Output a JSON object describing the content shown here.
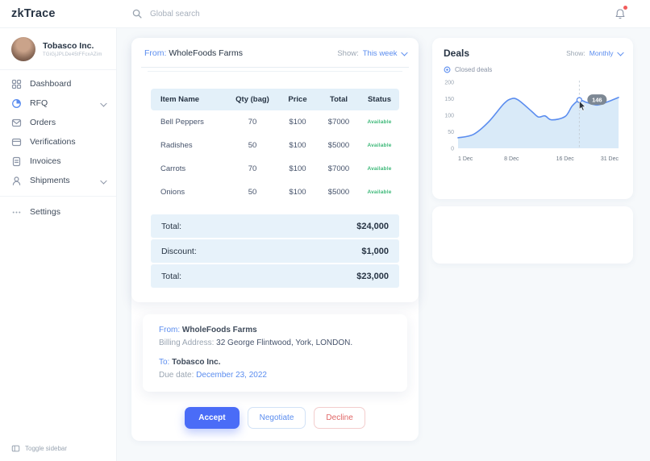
{
  "app": {
    "logo": "zkTrace"
  },
  "topbar": {
    "search_placeholder": "Global search"
  },
  "sidebar": {
    "user": {
      "name": "Tobasco Inc.",
      "id": "TGiGjJPLDe45tFFcxAZim"
    },
    "items": [
      {
        "label": "Dashboard"
      },
      {
        "label": "RFQ"
      },
      {
        "label": "Orders"
      },
      {
        "label": "Verifications"
      },
      {
        "label": "Invoices"
      },
      {
        "label": "Shipments"
      },
      {
        "label": "Settings"
      }
    ],
    "toggle_label": "Toggle sidebar"
  },
  "quote": {
    "from_label": "From:",
    "from_value": "WholeFoods Farms",
    "show_label": "Show:",
    "show_value": "This week",
    "table": {
      "headers": [
        "Item Name",
        "Qty (bag)",
        "Price",
        "Total",
        "Status"
      ],
      "rows": [
        {
          "item": "Bell Peppers",
          "qty": "70",
          "price": "$100",
          "total": "$7000",
          "status": "Available"
        },
        {
          "item": "Radishes",
          "qty": "50",
          "price": "$100",
          "total": "$5000",
          "status": "Available"
        },
        {
          "item": "Carrots",
          "qty": "70",
          "price": "$100",
          "total": "$7000",
          "status": "Available"
        },
        {
          "item": "Onions",
          "qty": "50",
          "price": "$100",
          "total": "$5000",
          "status": "Available"
        }
      ]
    },
    "summary": [
      {
        "label": "Total:",
        "value": "$24,000"
      },
      {
        "label": "Discount:",
        "value": "$1,000"
      },
      {
        "label": "Total:",
        "value": "$23,000"
      }
    ]
  },
  "details": {
    "from_label": "From:",
    "from_value": "WholeFoods Farms",
    "billing_label": "Billing Address:",
    "billing_value": "32 George Flintwood, York, LONDON.",
    "to_label": "To:",
    "to_value": "Tobasco Inc.",
    "due_label": "Due date:",
    "due_value": "December 23, 2022"
  },
  "actions": {
    "accept": "Accept",
    "negotiate": "Negotiate",
    "decline": "Decline"
  },
  "deals": {
    "title": "Deals",
    "show_label": "Show:",
    "show_value": "Monthly",
    "legend": "Closed deals"
  },
  "chart_data": {
    "type": "area",
    "title": "Deals",
    "legend": [
      "Closed deals"
    ],
    "x_tick_labels": [
      "1 Dec",
      "8 Dec",
      "16 Dec",
      "31 Dec"
    ],
    "x_tick_days": [
      1,
      8,
      16,
      31
    ],
    "y_ticks": [
      0,
      50,
      100,
      150,
      200
    ],
    "ylim": [
      0,
      200
    ],
    "series": [
      {
        "name": "Closed deals",
        "points": [
          {
            "day": 1,
            "value": 32
          },
          {
            "day": 3,
            "value": 42
          },
          {
            "day": 5,
            "value": 80
          },
          {
            "day": 7,
            "value": 135
          },
          {
            "day": 8,
            "value": 150
          },
          {
            "day": 9,
            "value": 146
          },
          {
            "day": 11,
            "value": 112
          },
          {
            "day": 12,
            "value": 95
          },
          {
            "day": 13,
            "value": 98
          },
          {
            "day": 14,
            "value": 86
          },
          {
            "day": 16,
            "value": 96
          },
          {
            "day": 18,
            "value": 128
          },
          {
            "day": 20,
            "value": 146
          },
          {
            "day": 22,
            "value": 139
          },
          {
            "day": 25,
            "value": 131
          },
          {
            "day": 28,
            "value": 141
          },
          {
            "day": 31,
            "value": 154
          }
        ]
      }
    ],
    "annotation": {
      "day": 20,
      "value": 146,
      "label": "146"
    }
  },
  "colors": {
    "accent": "#4a6cf7",
    "chart_line": "#5b8def",
    "chart_area": "#d9eaf8",
    "tooltip_bg": "#7d8894",
    "dashed": "#c3ccd5",
    "axis_text": "#9aa5b2",
    "axis_text_dark": "#6b7683",
    "table_header_bg": "#e3f0f9",
    "status_green": "#3cb878",
    "decline_red": "#e06666",
    "notification_red": "#f25c5c"
  }
}
